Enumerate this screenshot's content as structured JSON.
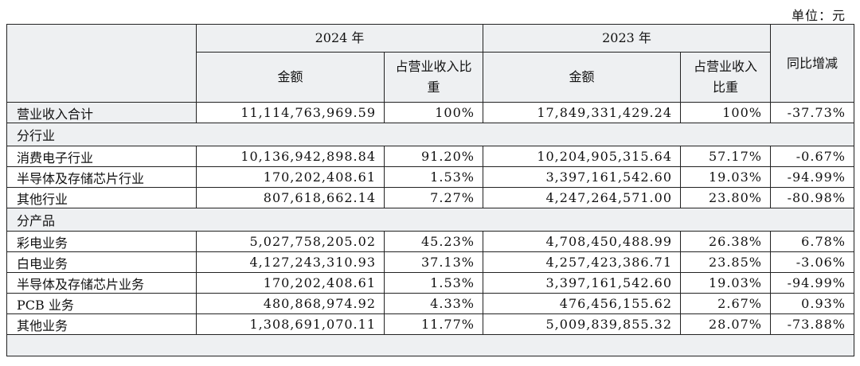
{
  "unit_label": "单位：元",
  "header": {
    "year_2024": "2024 年",
    "year_2023": "2023 年",
    "amount": "金额",
    "share_2024": "占营业收入比重",
    "share_2023": "占营业收入比重",
    "yoy": "同比增减"
  },
  "total": {
    "label": "营业收入合计",
    "amt_2024": "11,114,763,969.59",
    "pct_2024": "100%",
    "amt_2023": "17,849,331,429.24",
    "pct_2023": "100%",
    "yoy": "-37.73%"
  },
  "sections": [
    {
      "title": "分行业",
      "rows": [
        {
          "label": "消费电子行业",
          "amt_2024": "10,136,942,898.84",
          "pct_2024": "91.20%",
          "amt_2023": "10,204,905,315.64",
          "pct_2023": "57.17%",
          "yoy": "-0.67%"
        },
        {
          "label": "半导体及存储芯片行业",
          "amt_2024": "170,202,408.61",
          "pct_2024": "1.53%",
          "amt_2023": "3,397,161,542.60",
          "pct_2023": "19.03%",
          "yoy": "-94.99%"
        },
        {
          "label": "其他行业",
          "amt_2024": "807,618,662.14",
          "pct_2024": "7.27%",
          "amt_2023": "4,247,264,571.00",
          "pct_2023": "23.80%",
          "yoy": "-80.98%"
        }
      ]
    },
    {
      "title": "分产品",
      "rows": [
        {
          "label": "彩电业务",
          "amt_2024": "5,027,758,205.02",
          "pct_2024": "45.23%",
          "amt_2023": "4,708,450,488.99",
          "pct_2023": "26.38%",
          "yoy": "6.78%"
        },
        {
          "label": "白电业务",
          "amt_2024": "4,127,243,310.93",
          "pct_2024": "37.13%",
          "amt_2023": "4,257,423,386.71",
          "pct_2023": "23.85%",
          "yoy": "-3.06%"
        },
        {
          "label": "半导体及存储芯片业务",
          "amt_2024": "170,202,408.61",
          "pct_2024": "1.53%",
          "amt_2023": "3,397,161,542.60",
          "pct_2023": "19.03%",
          "yoy": "-94.99%"
        },
        {
          "label": "PCB 业务",
          "amt_2024": "480,868,974.92",
          "pct_2024": "4.33%",
          "amt_2023": "476,456,155.62",
          "pct_2023": "2.67%",
          "yoy": "0.93%"
        },
        {
          "label": "其他业务",
          "amt_2024": "1,308,691,070.11",
          "pct_2024": "11.77%",
          "amt_2023": "5,009,839,855.32",
          "pct_2023": "28.07%",
          "yoy": "-73.88%"
        }
      ]
    }
  ]
}
